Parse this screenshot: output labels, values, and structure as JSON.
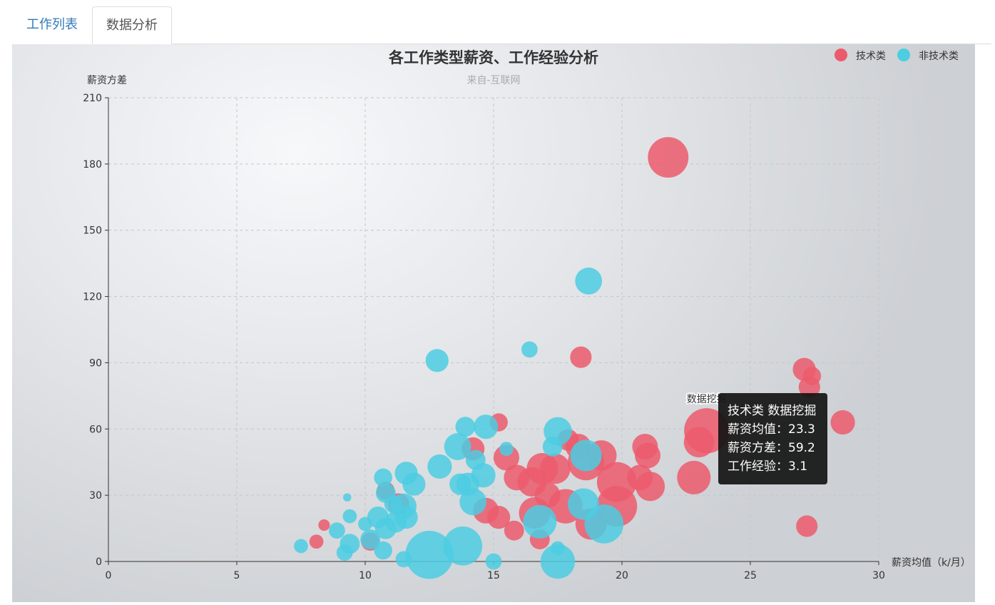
{
  "tabs": [
    {
      "label": "工作列表",
      "active": false
    },
    {
      "label": "数据分析",
      "active": true
    }
  ],
  "chart_data": {
    "type": "scatter",
    "title": "各工作类型薪资、工作经验分析",
    "subtitle": "来自-互联网",
    "xlabel": "薪资均值（k/月）",
    "ylabel": "薪资方差",
    "xlim": [
      0,
      30
    ],
    "ylim": [
      0,
      210
    ],
    "xticks": [
      0,
      5,
      10,
      15,
      20,
      25,
      30
    ],
    "yticks": [
      0,
      30,
      60,
      90,
      120,
      150,
      180,
      210
    ],
    "grid": true,
    "legend_position": "top-right",
    "series": [
      {
        "name": "技术类",
        "color": "#ec5b6c",
        "points": [
          [
            21.8,
            183,
            2.5
          ],
          [
            18.4,
            92.5,
            0.7
          ],
          [
            27.1,
            87,
            0.8
          ],
          [
            27.4,
            84,
            0.5
          ],
          [
            27.3,
            79,
            0.7
          ],
          [
            28.6,
            63,
            0.9
          ],
          [
            15.2,
            63,
            0.5
          ],
          [
            23.3,
            59.2,
            3.1
          ],
          [
            23.0,
            54,
            1.4
          ],
          [
            20.9,
            52,
            1.0
          ],
          [
            21.0,
            48,
            1.0
          ],
          [
            22.8,
            38,
            1.7
          ],
          [
            21.1,
            34,
            1.3
          ],
          [
            20.7,
            38,
            1.0
          ],
          [
            19.8,
            36,
            2.4
          ],
          [
            19.2,
            48,
            1.4
          ],
          [
            18.6,
            45,
            2.0
          ],
          [
            18.3,
            52,
            1.0
          ],
          [
            17.9,
            55,
            0.7
          ],
          [
            17.4,
            42,
            1.4
          ],
          [
            16.9,
            42,
            1.5
          ],
          [
            16.5,
            36,
            1.3
          ],
          [
            15.9,
            38,
            1.0
          ],
          [
            15.5,
            47,
            1.0
          ],
          [
            17.1,
            30,
            1.0
          ],
          [
            17.8,
            25,
            1.8
          ],
          [
            16.6,
            22,
            1.5
          ],
          [
            19.8,
            25,
            2.5
          ],
          [
            18.8,
            17,
            1.5
          ],
          [
            16.8,
            10,
            0.6
          ],
          [
            15.8,
            14,
            0.6
          ],
          [
            15.2,
            20,
            0.8
          ],
          [
            14.7,
            23,
            1.0
          ],
          [
            14.2,
            51,
            0.8
          ],
          [
            11.3,
            26,
            0.7
          ],
          [
            10.8,
            32,
            0.5
          ],
          [
            27.2,
            16,
            0.7
          ],
          [
            8.1,
            9,
            0.3
          ],
          [
            8.4,
            16.5,
            0.2
          ],
          [
            10.2,
            9,
            0.5
          ]
        ]
      },
      {
        "name": "非技术类",
        "color": "#4ccde2",
        "points": [
          [
            18.7,
            127,
            1.1
          ],
          [
            12.8,
            91,
            0.8
          ],
          [
            16.4,
            96,
            0.4
          ],
          [
            17.5,
            59,
            1.2
          ],
          [
            17.3,
            52,
            0.6
          ],
          [
            18.6,
            48,
            1.5
          ],
          [
            14.7,
            61,
            0.9
          ],
          [
            13.9,
            61,
            0.6
          ],
          [
            13.6,
            52,
            1.1
          ],
          [
            12.9,
            43,
            0.9
          ],
          [
            14.3,
            46,
            0.6
          ],
          [
            14.6,
            39,
            0.9
          ],
          [
            14.0,
            35,
            0.8
          ],
          [
            13.7,
            35,
            0.7
          ],
          [
            15.5,
            51,
            0.3
          ],
          [
            14.2,
            27,
            1.1
          ],
          [
            18.5,
            26,
            1.5
          ],
          [
            16.8,
            18,
            1.7
          ],
          [
            19.3,
            17,
            2.3
          ],
          [
            17.5,
            6,
            0.3
          ],
          [
            17.5,
            0,
            1.8
          ],
          [
            13.8,
            7,
            2.3
          ],
          [
            12.5,
            3,
            3.5
          ],
          [
            15.0,
            0,
            0.4
          ],
          [
            11.6,
            40,
            0.8
          ],
          [
            11.9,
            35,
            0.8
          ],
          [
            10.7,
            38,
            0.5
          ],
          [
            10.8,
            31,
            0.6
          ],
          [
            11.5,
            25,
            1.0
          ],
          [
            11.6,
            20,
            0.8
          ],
          [
            11.2,
            18,
            0.7
          ],
          [
            10.5,
            20,
            0.7
          ],
          [
            11.1,
            26,
            0.5
          ],
          [
            10.8,
            15,
            0.7
          ],
          [
            10.2,
            10,
            0.6
          ],
          [
            9.4,
            8,
            0.6
          ],
          [
            9.2,
            4,
            0.4
          ],
          [
            8.9,
            14,
            0.4
          ],
          [
            10.0,
            17,
            0.3
          ],
          [
            9.4,
            20.5,
            0.3
          ],
          [
            9.3,
            29,
            0.1
          ],
          [
            7.5,
            7,
            0.3
          ],
          [
            10.7,
            5,
            0.5
          ],
          [
            11.5,
            1,
            0.4
          ]
        ]
      }
    ],
    "annotation": {
      "label": "数据挖掘",
      "x": 23.3,
      "y": 59.2
    }
  },
  "tooltip": {
    "header": "技术类 数据挖掘",
    "line1": "薪资均值：23.3",
    "line2": "薪资方差：59.2",
    "line3": "工作经验：3.1"
  }
}
